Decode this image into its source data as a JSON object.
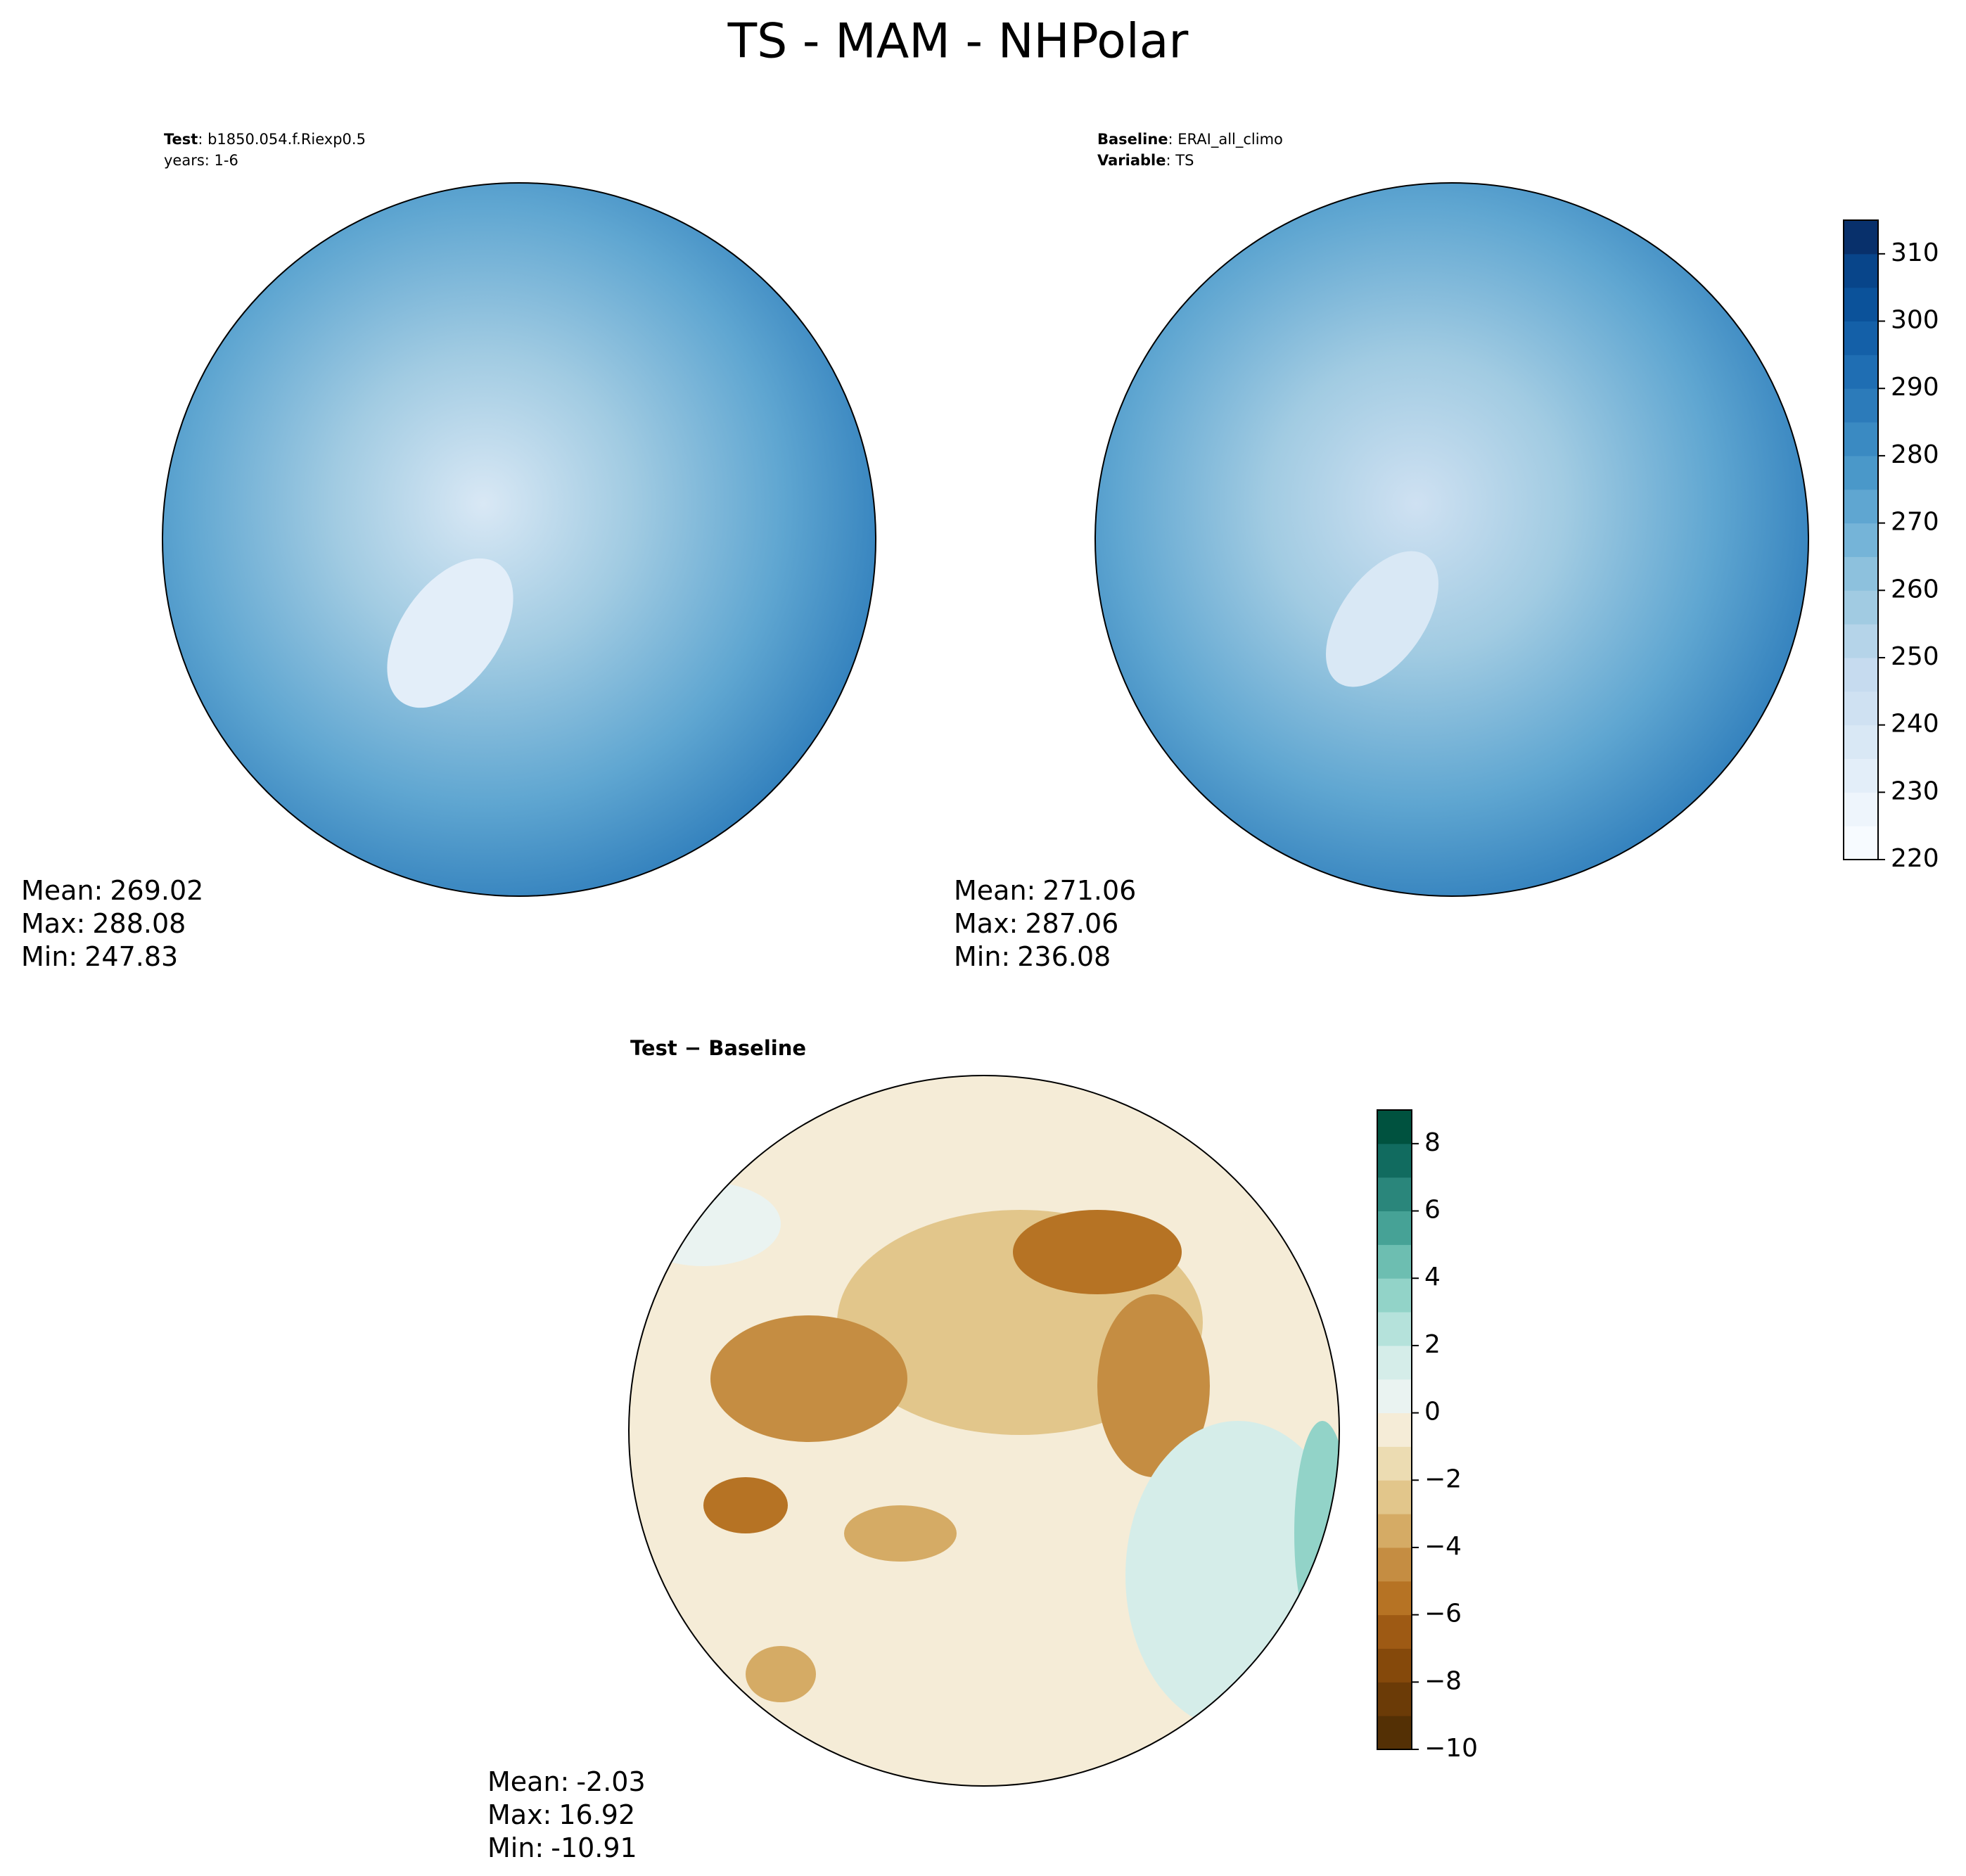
{
  "title": "TS - MAM - NHPolar",
  "panels": [
    {
      "header": [
        {
          "label": "Test",
          "text": ": b1850.054.f.Riexp0.5"
        },
        {
          "text": "years: 1-6"
        }
      ],
      "stats": [
        {
          "label": "Mean:",
          "value": 269.02
        },
        {
          "label": "Max:",
          "value": 288.08
        },
        {
          "label": "Min:",
          "value": 247.83
        }
      ]
    },
    {
      "header": [
        {
          "label": "Baseline",
          "text": ": ERAI_all_climo"
        },
        {
          "label": "Variable",
          "text": ": TS"
        }
      ],
      "stats": [
        {
          "label": "Mean:",
          "value": 271.06
        },
        {
          "label": "Max:",
          "value": 287.06
        },
        {
          "label": "Min:",
          "value": 236.08
        }
      ]
    },
    {
      "header": [
        {
          "label": "Test − Baseline"
        }
      ],
      "stats": [
        {
          "label": "Mean:",
          "value": -2.03
        },
        {
          "label": "Max:",
          "value": 16.92
        },
        {
          "label": "Min:",
          "value": -10.91
        }
      ]
    }
  ],
  "colorbars": [
    {
      "ylim": [
        220,
        315
      ],
      "levels": [
        220,
        225,
        230,
        235,
        240,
        245,
        250,
        255,
        260,
        265,
        270,
        275,
        280,
        285,
        290,
        295,
        300,
        305,
        310,
        315
      ],
      "colors": [
        "#f7fbff",
        "#eef5fc",
        "#e3eef9",
        "#d9e8f5",
        "#cfe1f2",
        "#c6dbef",
        "#b5d4e9",
        "#a1cbe2",
        "#8dc1dd",
        "#75b4d8",
        "#5fa6d1",
        "#4a98c9",
        "#3a8ac2",
        "#2c7bba",
        "#1f6eb3",
        "#1460a8",
        "#0b529a",
        "#08458a",
        "#08306b"
      ],
      "yticks": [
        220,
        230,
        240,
        250,
        260,
        270,
        280,
        290,
        300,
        310
      ]
    },
    {
      "ylim": [
        -10,
        9
      ],
      "levels": [
        -10,
        -9,
        -8,
        -7,
        -6,
        -5,
        -4,
        -3,
        -2,
        -1,
        0,
        1,
        2,
        3,
        4,
        5,
        6,
        7,
        8,
        9
      ],
      "colors": [
        "#543005",
        "#6b3b07",
        "#85490b",
        "#9e5a14",
        "#b67324",
        "#c58d42",
        "#d5ab65",
        "#e2c68b",
        "#ecdcb2",
        "#f5ecd7",
        "#eaf3f1",
        "#d5ede9",
        "#b5e2db",
        "#92d3c8",
        "#6dbeb1",
        "#46a296",
        "#2a867b",
        "#116b5f",
        "#00523f"
      ],
      "yticks": [
        {
          "value": -10,
          "label": "−10"
        },
        {
          "value": -8,
          "label": "−8"
        },
        {
          "value": -6,
          "label": "−6"
        },
        {
          "value": -4,
          "label": "−4"
        },
        {
          "value": -2,
          "label": "−2"
        },
        0,
        2,
        4,
        6,
        8
      ]
    }
  ]
}
